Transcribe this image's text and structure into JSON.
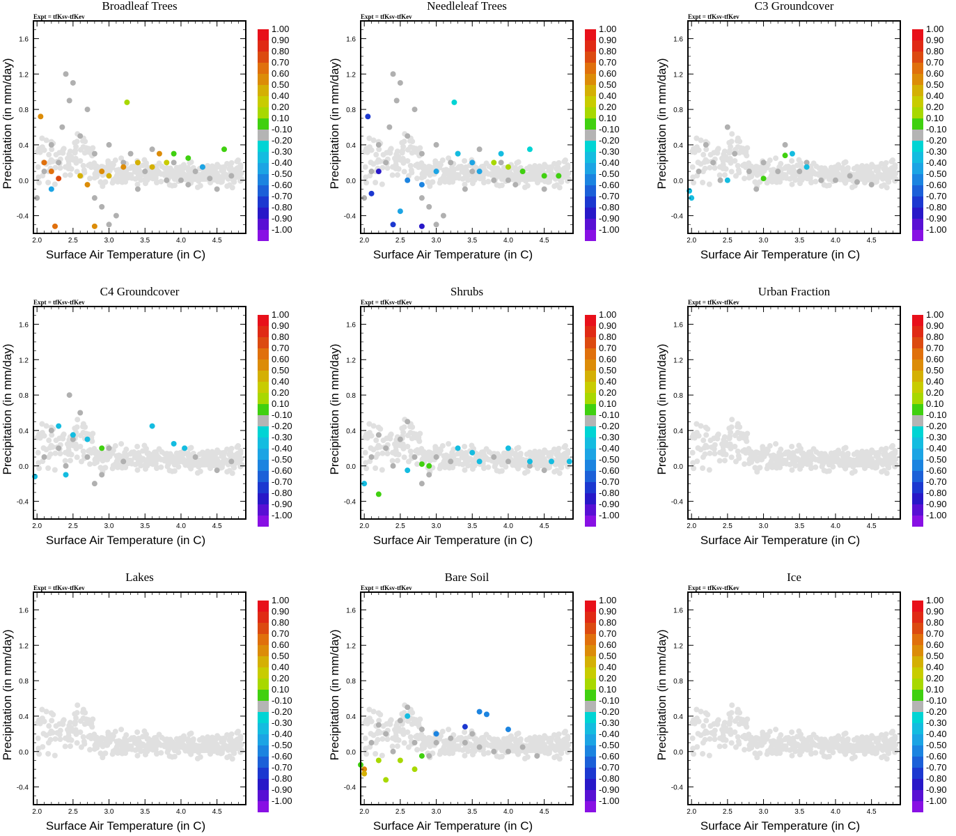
{
  "figure": {
    "experiment_label": "Expt = tfKsv-tfKev",
    "xlabel": "Surface Air Temperature (in C)",
    "ylabel": "Precipitation (in mm/day)"
  },
  "chart_data": {
    "type": "scatter",
    "xlim": [
      1.95,
      4.9
    ],
    "ylim": [
      -0.6,
      1.8
    ],
    "xticks": [
      "2.0",
      "2.5",
      "3.0",
      "3.5",
      "4.0",
      "4.5"
    ],
    "xtick_values": [
      2.0,
      2.5,
      3.0,
      3.5,
      4.0,
      4.5
    ],
    "yticks": [
      "1.6",
      "1.2",
      "0.8",
      "0.4",
      "0.0",
      "-0.4"
    ],
    "ytick_values": [
      1.6,
      1.2,
      0.8,
      0.4,
      0.0,
      -0.4
    ],
    "colorbar": {
      "labels": [
        "1.00",
        "0.90",
        "0.80",
        "0.70",
        "0.60",
        "0.50",
        "0.40",
        "0.20",
        "0.10",
        "-0.10",
        "-0.20",
        "-0.30",
        "-0.40",
        "-0.50",
        "-0.60",
        "-0.70",
        "-0.80",
        "-0.90",
        "-1.00"
      ],
      "colors": [
        "#e8101a",
        "#e02a14",
        "#dc4a10",
        "#e0700c",
        "#dc8c08",
        "#d4b004",
        "#c8cc00",
        "#a8d800",
        "#40d010",
        "#b4b4b4",
        "#00d4d4",
        "#14bce0",
        "#1ca4e4",
        "#1c84e0",
        "#1c60d8",
        "#1c38d0",
        "#2818c8",
        "#5810d4",
        "#8810e4"
      ]
    },
    "panels": [
      {
        "title": "Broadleaf Trees",
        "background_points": [
          [
            2.3,
            0.2
          ],
          [
            2.6,
            0.5
          ],
          [
            2.8,
            0.3
          ],
          [
            2.4,
            1.2
          ],
          [
            2.5,
            1.1
          ],
          [
            2.7,
            0.8
          ],
          [
            3.0,
            0.4
          ],
          [
            3.2,
            0.2
          ],
          [
            3.5,
            0.1
          ],
          [
            3.8,
            0.0
          ],
          [
            4.0,
            0.0
          ],
          [
            4.2,
            0.1
          ],
          [
            4.5,
            -0.1
          ],
          [
            4.7,
            0.05
          ],
          [
            2.9,
            -0.3
          ],
          [
            3.1,
            -0.4
          ],
          [
            2.1,
            0.1
          ],
          [
            2.0,
            -0.2
          ],
          [
            3.3,
            0.3
          ],
          [
            3.6,
            0.35
          ],
          [
            3.9,
            0.2
          ],
          [
            4.1,
            -0.05
          ],
          [
            4.4,
            0.02
          ],
          [
            2.2,
            0.4
          ],
          [
            2.45,
            0.9
          ],
          [
            2.35,
            0.6
          ],
          [
            3.0,
            -0.5
          ],
          [
            2.8,
            -0.2
          ],
          [
            3.4,
            -0.1
          ],
          [
            4.3,
            0.15
          ]
        ],
        "colored_points": [
          [
            2.6,
            0.05,
            0.5
          ],
          [
            2.7,
            -0.05,
            0.6
          ],
          [
            2.9,
            0.1,
            0.6
          ],
          [
            3.2,
            0.15,
            0.6
          ],
          [
            3.4,
            0.2,
            0.5
          ],
          [
            3.6,
            0.15,
            0.5
          ],
          [
            3.8,
            0.2,
            0.4
          ],
          [
            3.9,
            0.3,
            0.1
          ],
          [
            4.1,
            0.25,
            0.1
          ],
          [
            4.3,
            0.15,
            -0.4
          ],
          [
            4.6,
            0.35,
            0.1
          ],
          [
            2.2,
            0.1,
            0.7
          ],
          [
            2.3,
            0.02,
            0.8
          ],
          [
            2.1,
            0.2,
            0.7
          ],
          [
            3.25,
            0.88,
            0.2
          ],
          [
            2.25,
            -0.52,
            0.7
          ],
          [
            2.8,
            -0.52,
            0.6
          ],
          [
            2.05,
            0.72,
            0.6
          ],
          [
            2.2,
            -0.1,
            -0.4
          ],
          [
            3.7,
            0.3,
            0.6
          ],
          [
            3.0,
            0.05,
            0.5
          ]
        ]
      },
      {
        "title": "Needleleaf Trees",
        "background_points": [
          [
            2.3,
            0.2
          ],
          [
            2.6,
            0.5
          ],
          [
            2.8,
            0.3
          ],
          [
            2.4,
            1.2
          ],
          [
            2.5,
            1.1
          ],
          [
            2.7,
            0.8
          ],
          [
            3.0,
            0.4
          ],
          [
            3.2,
            0.2
          ],
          [
            3.5,
            0.1
          ],
          [
            3.8,
            0.0
          ],
          [
            4.0,
            0.0
          ],
          [
            4.2,
            0.1
          ],
          [
            4.5,
            -0.1
          ],
          [
            4.7,
            0.05
          ],
          [
            2.9,
            -0.3
          ],
          [
            3.1,
            -0.4
          ],
          [
            2.1,
            0.1
          ],
          [
            2.0,
            -0.2
          ],
          [
            3.3,
            0.3
          ],
          [
            3.6,
            0.35
          ],
          [
            3.9,
            0.2
          ],
          [
            4.1,
            -0.05
          ],
          [
            2.2,
            0.4
          ],
          [
            2.45,
            0.9
          ],
          [
            2.35,
            0.6
          ],
          [
            3.0,
            -0.5
          ],
          [
            2.8,
            -0.2
          ],
          [
            3.4,
            -0.1
          ]
        ],
        "colored_points": [
          [
            2.6,
            0.0,
            -0.5
          ],
          [
            2.8,
            -0.05,
            -0.5
          ],
          [
            3.0,
            0.1,
            -0.4
          ],
          [
            3.3,
            0.3,
            -0.3
          ],
          [
            3.5,
            0.2,
            -0.4
          ],
          [
            3.6,
            0.1,
            -0.4
          ],
          [
            3.8,
            0.2,
            0.2
          ],
          [
            4.0,
            0.15,
            0.2
          ],
          [
            4.2,
            0.1,
            0.1
          ],
          [
            4.5,
            0.05,
            0.1
          ],
          [
            4.7,
            0.05,
            0.1
          ],
          [
            3.25,
            0.88,
            -0.2
          ],
          [
            2.1,
            -0.15,
            -0.7
          ],
          [
            2.2,
            0.1,
            -0.8
          ],
          [
            2.4,
            -0.5,
            -0.7
          ],
          [
            2.8,
            -0.52,
            -0.8
          ],
          [
            2.05,
            0.72,
            -0.7
          ],
          [
            3.9,
            0.3,
            -0.3
          ],
          [
            4.3,
            0.35,
            -0.2
          ],
          [
            2.5,
            -0.35,
            -0.4
          ]
        ]
      },
      {
        "title": "C3 Groundcover",
        "background_points": [
          [
            2.3,
            0.2
          ],
          [
            2.6,
            0.3
          ],
          [
            2.8,
            0.1
          ],
          [
            2.5,
            0.6
          ],
          [
            3.0,
            0.2
          ],
          [
            3.2,
            0.1
          ],
          [
            3.5,
            0.1
          ],
          [
            3.8,
            0.0
          ],
          [
            4.0,
            0.0
          ],
          [
            4.2,
            0.05
          ],
          [
            4.5,
            -0.05
          ],
          [
            2.2,
            0.4
          ],
          [
            2.4,
            0.0
          ],
          [
            2.9,
            -0.1
          ],
          [
            2.1,
            0.1
          ],
          [
            3.3,
            0.4
          ],
          [
            3.6,
            0.2
          ],
          [
            4.3,
            -0.02
          ]
        ],
        "colored_points": [
          [
            1.97,
            -0.12,
            -0.3
          ],
          [
            2.0,
            -0.2,
            -0.3
          ],
          [
            2.5,
            0.0,
            -0.3
          ],
          [
            3.0,
            0.02,
            0.1
          ],
          [
            3.4,
            0.3,
            -0.3
          ],
          [
            3.6,
            0.15,
            -0.3
          ],
          [
            3.3,
            0.28,
            0.1
          ]
        ]
      },
      {
        "title": "C4 Groundcover",
        "background_points": [
          [
            2.3,
            0.2
          ],
          [
            2.5,
            0.3
          ],
          [
            2.7,
            0.1
          ],
          [
            2.6,
            0.6
          ],
          [
            2.4,
            0.0
          ],
          [
            2.9,
            -0.1
          ],
          [
            2.2,
            0.4
          ],
          [
            3.0,
            0.2
          ],
          [
            4.2,
            0.1
          ],
          [
            4.5,
            -0.05
          ],
          [
            4.7,
            0.05
          ],
          [
            2.1,
            0.1
          ],
          [
            2.8,
            -0.2
          ],
          [
            3.2,
            0.05
          ],
          [
            2.45,
            0.8
          ]
        ],
        "colored_points": [
          [
            2.3,
            0.45,
            -0.3
          ],
          [
            2.5,
            0.35,
            -0.3
          ],
          [
            2.9,
            0.2,
            0.1
          ],
          [
            3.6,
            0.45,
            -0.3
          ],
          [
            3.9,
            0.25,
            -0.3
          ],
          [
            4.05,
            0.2,
            -0.3
          ],
          [
            1.97,
            -0.12,
            -0.3
          ],
          [
            2.4,
            -0.1,
            -0.3
          ],
          [
            2.7,
            0.3,
            -0.3
          ]
        ]
      },
      {
        "title": "Shrubs",
        "background_points": [
          [
            2.3,
            0.2
          ],
          [
            2.5,
            0.3
          ],
          [
            2.7,
            0.1
          ],
          [
            2.6,
            0.5
          ],
          [
            2.4,
            0.0
          ],
          [
            2.9,
            -0.1
          ],
          [
            2.2,
            0.35
          ],
          [
            3.0,
            0.1
          ],
          [
            4.0,
            0.05
          ],
          [
            4.3,
            0.0
          ],
          [
            4.5,
            -0.05
          ],
          [
            2.1,
            0.1
          ],
          [
            2.8,
            -0.2
          ],
          [
            3.2,
            0.05
          ],
          [
            3.8,
            0.1
          ]
        ],
        "colored_points": [
          [
            3.3,
            0.2,
            -0.3
          ],
          [
            3.5,
            0.15,
            -0.3
          ],
          [
            3.6,
            0.05,
            -0.3
          ],
          [
            4.0,
            0.2,
            -0.3
          ],
          [
            4.3,
            0.05,
            -0.3
          ],
          [
            4.6,
            0.05,
            -0.3
          ],
          [
            4.85,
            0.05,
            -0.3
          ],
          [
            2.8,
            0.02,
            0.1
          ],
          [
            2.9,
            0.0,
            0.1
          ],
          [
            2.2,
            -0.32,
            0.1
          ],
          [
            2.0,
            -0.2,
            -0.3
          ],
          [
            2.6,
            -0.05,
            -0.3
          ]
        ]
      },
      {
        "title": "Urban Fraction",
        "background_points": [],
        "colored_points": []
      },
      {
        "title": "Lakes",
        "background_points": [],
        "colored_points": []
      },
      {
        "title": "Bare Soil",
        "background_points": [
          [
            2.3,
            0.2
          ],
          [
            2.5,
            0.35
          ],
          [
            2.7,
            0.1
          ],
          [
            2.6,
            0.5
          ],
          [
            2.4,
            0.0
          ],
          [
            2.9,
            -0.05
          ],
          [
            2.2,
            0.3
          ],
          [
            3.0,
            0.1
          ],
          [
            3.4,
            0.1
          ],
          [
            3.6,
            0.05
          ],
          [
            3.8,
            0.0
          ],
          [
            4.0,
            0.0
          ],
          [
            4.2,
            0.05
          ],
          [
            4.4,
            -0.05
          ],
          [
            2.1,
            0.1
          ],
          [
            2.8,
            0.25
          ],
          [
            3.2,
            0.15
          ],
          [
            3.5,
            0.2
          ]
        ],
        "colored_points": [
          [
            3.6,
            0.45,
            -0.5
          ],
          [
            3.7,
            0.42,
            -0.5
          ],
          [
            3.4,
            0.28,
            -0.7
          ],
          [
            3.0,
            0.2,
            -0.5
          ],
          [
            4.0,
            0.25,
            -0.5
          ],
          [
            2.6,
            0.4,
            -0.3
          ],
          [
            2.0,
            -0.2,
            0.6
          ],
          [
            2.0,
            -0.25,
            0.5
          ],
          [
            2.2,
            -0.1,
            0.2
          ],
          [
            2.3,
            -0.32,
            0.2
          ],
          [
            2.5,
            -0.1,
            0.2
          ],
          [
            2.7,
            -0.2,
            0.2
          ],
          [
            2.8,
            -0.05,
            0.1
          ],
          [
            1.95,
            -0.15,
            0.1
          ]
        ]
      },
      {
        "title": "Ice",
        "background_points": [],
        "colored_points": []
      }
    ]
  }
}
